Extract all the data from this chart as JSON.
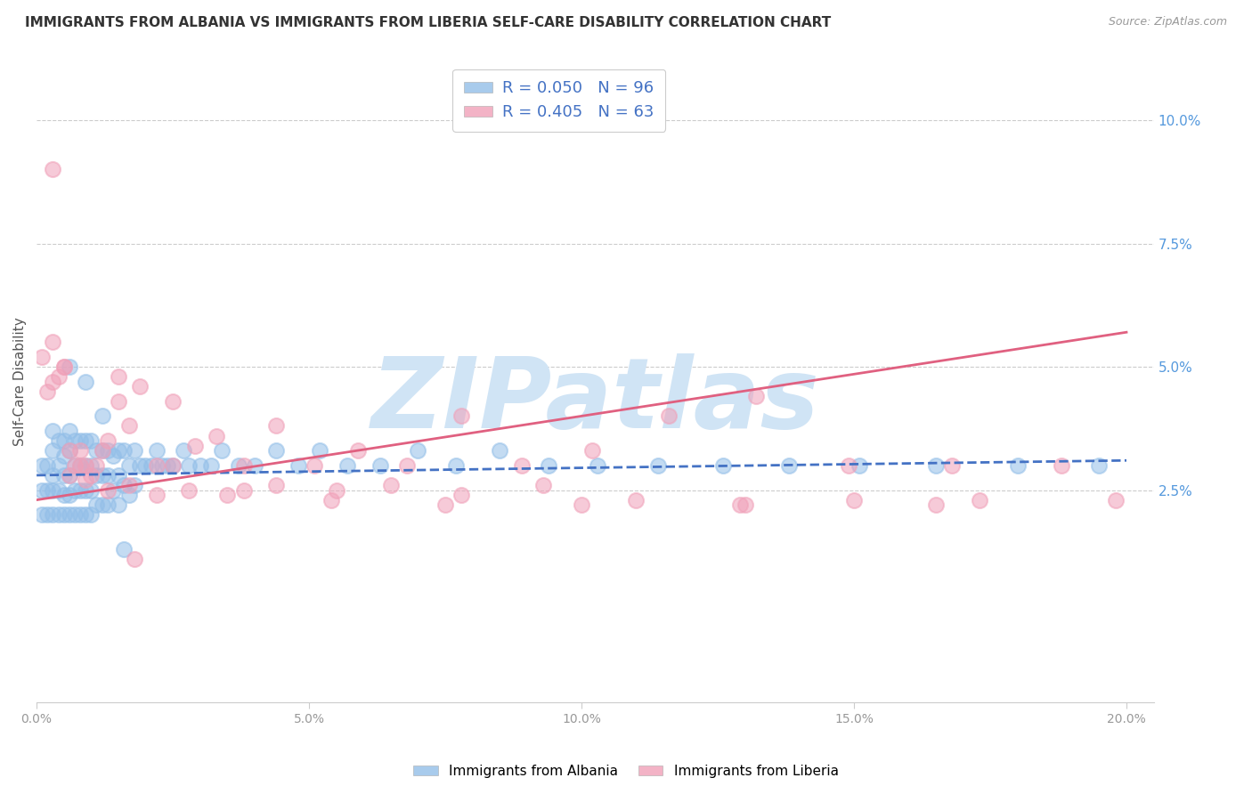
{
  "title": "IMMIGRANTS FROM ALBANIA VS IMMIGRANTS FROM LIBERIA SELF-CARE DISABILITY CORRELATION CHART",
  "source": "Source: ZipAtlas.com",
  "ylabel": "Self-Care Disability",
  "xlim": [
    0.0,
    0.205
  ],
  "ylim": [
    -0.018,
    0.112
  ],
  "xticks": [
    0.0,
    0.05,
    0.1,
    0.15,
    0.2
  ],
  "xtick_labels": [
    "0.0%",
    "5.0%",
    "10.0%",
    "15.0%",
    "20.0%"
  ],
  "ytick_right_vals": [
    0.025,
    0.05,
    0.075,
    0.1
  ],
  "ytick_right_labels": [
    "2.5%",
    "5.0%",
    "7.5%",
    "10.0%"
  ],
  "albania_color": "#92BEE8",
  "liberia_color": "#F0A0B8",
  "albania_R": 0.05,
  "albania_N": 96,
  "liberia_R": 0.405,
  "liberia_N": 63,
  "watermark": "ZIPatlas",
  "watermark_color": "#D0E4F5",
  "albania_scatter_x": [
    0.001,
    0.001,
    0.001,
    0.002,
    0.002,
    0.002,
    0.003,
    0.003,
    0.003,
    0.003,
    0.004,
    0.004,
    0.004,
    0.004,
    0.005,
    0.005,
    0.005,
    0.005,
    0.005,
    0.006,
    0.006,
    0.006,
    0.006,
    0.006,
    0.007,
    0.007,
    0.007,
    0.007,
    0.008,
    0.008,
    0.008,
    0.008,
    0.009,
    0.009,
    0.009,
    0.009,
    0.01,
    0.01,
    0.01,
    0.01,
    0.011,
    0.011,
    0.011,
    0.012,
    0.012,
    0.012,
    0.013,
    0.013,
    0.013,
    0.014,
    0.014,
    0.015,
    0.015,
    0.015,
    0.016,
    0.016,
    0.017,
    0.017,
    0.018,
    0.018,
    0.019,
    0.02,
    0.021,
    0.022,
    0.023,
    0.024,
    0.025,
    0.027,
    0.028,
    0.03,
    0.032,
    0.034,
    0.037,
    0.04,
    0.044,
    0.048,
    0.052,
    0.057,
    0.063,
    0.07,
    0.077,
    0.085,
    0.094,
    0.103,
    0.114,
    0.126,
    0.138,
    0.151,
    0.165,
    0.18,
    0.195,
    0.003,
    0.006,
    0.009,
    0.012,
    0.016
  ],
  "albania_scatter_y": [
    0.03,
    0.025,
    0.02,
    0.03,
    0.025,
    0.02,
    0.033,
    0.028,
    0.025,
    0.02,
    0.035,
    0.03,
    0.025,
    0.02,
    0.035,
    0.032,
    0.028,
    0.024,
    0.02,
    0.037,
    0.033,
    0.028,
    0.024,
    0.02,
    0.035,
    0.03,
    0.025,
    0.02,
    0.035,
    0.03,
    0.025,
    0.02,
    0.035,
    0.03,
    0.025,
    0.02,
    0.035,
    0.03,
    0.025,
    0.02,
    0.033,
    0.028,
    0.022,
    0.033,
    0.028,
    0.022,
    0.033,
    0.028,
    0.022,
    0.032,
    0.025,
    0.033,
    0.028,
    0.022,
    0.033,
    0.026,
    0.03,
    0.024,
    0.033,
    0.026,
    0.03,
    0.03,
    0.03,
    0.033,
    0.03,
    0.03,
    0.03,
    0.033,
    0.03,
    0.03,
    0.03,
    0.033,
    0.03,
    0.03,
    0.033,
    0.03,
    0.033,
    0.03,
    0.03,
    0.033,
    0.03,
    0.033,
    0.03,
    0.03,
    0.03,
    0.03,
    0.03,
    0.03,
    0.03,
    0.03,
    0.03,
    0.037,
    0.05,
    0.047,
    0.04,
    0.013
  ],
  "liberia_scatter_x": [
    0.001,
    0.002,
    0.003,
    0.004,
    0.005,
    0.006,
    0.007,
    0.008,
    0.009,
    0.01,
    0.011,
    0.012,
    0.013,
    0.015,
    0.017,
    0.019,
    0.022,
    0.025,
    0.029,
    0.033,
    0.038,
    0.044,
    0.051,
    0.059,
    0.068,
    0.078,
    0.089,
    0.102,
    0.116,
    0.132,
    0.149,
    0.168,
    0.188,
    0.003,
    0.006,
    0.009,
    0.013,
    0.017,
    0.022,
    0.028,
    0.035,
    0.044,
    0.054,
    0.065,
    0.078,
    0.093,
    0.11,
    0.129,
    0.15,
    0.173,
    0.198,
    0.005,
    0.015,
    0.025,
    0.038,
    0.055,
    0.075,
    0.1,
    0.13,
    0.165,
    0.003,
    0.008,
    0.018
  ],
  "liberia_scatter_y": [
    0.052,
    0.045,
    0.047,
    0.048,
    0.05,
    0.033,
    0.03,
    0.033,
    0.03,
    0.028,
    0.03,
    0.033,
    0.035,
    0.048,
    0.038,
    0.046,
    0.03,
    0.043,
    0.034,
    0.036,
    0.03,
    0.038,
    0.03,
    0.033,
    0.03,
    0.04,
    0.03,
    0.033,
    0.04,
    0.044,
    0.03,
    0.03,
    0.03,
    0.055,
    0.028,
    0.027,
    0.025,
    0.026,
    0.024,
    0.025,
    0.024,
    0.026,
    0.023,
    0.026,
    0.024,
    0.026,
    0.023,
    0.022,
    0.023,
    0.023,
    0.023,
    0.05,
    0.043,
    0.03,
    0.025,
    0.025,
    0.022,
    0.022,
    0.022,
    0.022,
    0.09,
    0.03,
    0.011
  ],
  "albania_trend_x": [
    0.0,
    0.2
  ],
  "albania_trend_y": [
    0.028,
    0.031
  ],
  "liberia_trend_x": [
    0.0,
    0.2
  ],
  "liberia_trend_y": [
    0.023,
    0.057
  ]
}
